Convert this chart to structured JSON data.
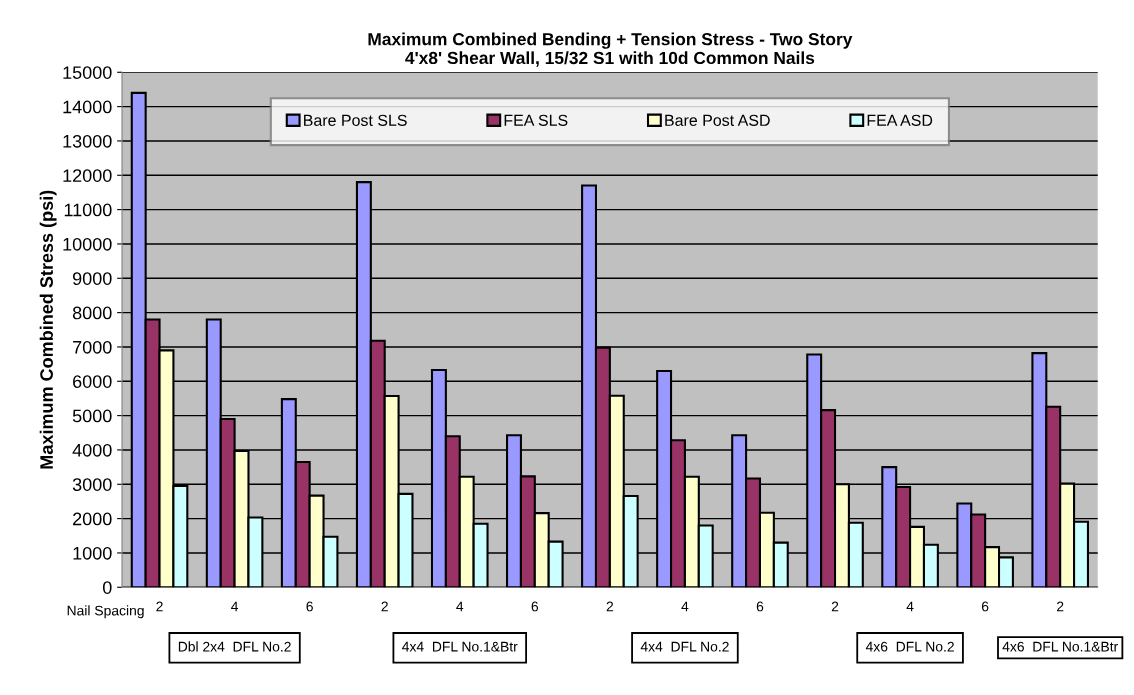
{
  "chart_data": {
    "type": "bar",
    "title": "Maximum Combined Bending + Tension Stress - Two Story\n4'x8' Shear Wall, 15/32 S1 with 10d Common Nails",
    "ylabel": "Maximum Combined Stress (psi)",
    "categories": [
      "2",
      "4",
      "6",
      "2",
      "4",
      "6",
      "2",
      "4",
      "6",
      "2",
      "4",
      "6",
      "2"
    ],
    "series": [
      {
        "name": "Bare Post SLS",
        "color": "#9999ff",
        "values": [
          14400,
          7800,
          5480,
          11800,
          6330,
          4430,
          11700,
          6300,
          4430,
          6780,
          3500,
          2440,
          6820
        ]
      },
      {
        "name": "FEA SLS",
        "color": "#993366",
        "values": [
          7800,
          4900,
          3650,
          7180,
          4400,
          3230,
          6980,
          4280,
          3170,
          5160,
          2920,
          2120,
          5260
        ]
      },
      {
        "name": "Bare Post ASD",
        "color": "#ffffcc",
        "values": [
          6900,
          3970,
          2670,
          5570,
          3220,
          2160,
          5580,
          3220,
          2170,
          3000,
          1760,
          1170,
          3020
        ]
      },
      {
        "name": "FEA ASD",
        "color": "#ccffff",
        "values": [
          2950,
          2030,
          1470,
          2720,
          1850,
          1330,
          2660,
          1800,
          1300,
          1880,
          1240,
          870,
          1910
        ]
      }
    ],
    "ylim": [
      0,
      15000
    ],
    "yticks": [
      0,
      1000,
      2000,
      3000,
      4000,
      5000,
      6000,
      7000,
      8000,
      9000,
      10000,
      11000,
      12000,
      13000,
      14000,
      15000
    ],
    "grid": "y",
    "legend": "top",
    "annotations": [
      "Nail Spacing",
      "Dbl 2x4  DFL No.2",
      "4x4  DFL No.1&Btr",
      "4x4  DFL No.2",
      "4x6  DFL No.2",
      "4x6  DFL No.1&Btr"
    ]
  }
}
